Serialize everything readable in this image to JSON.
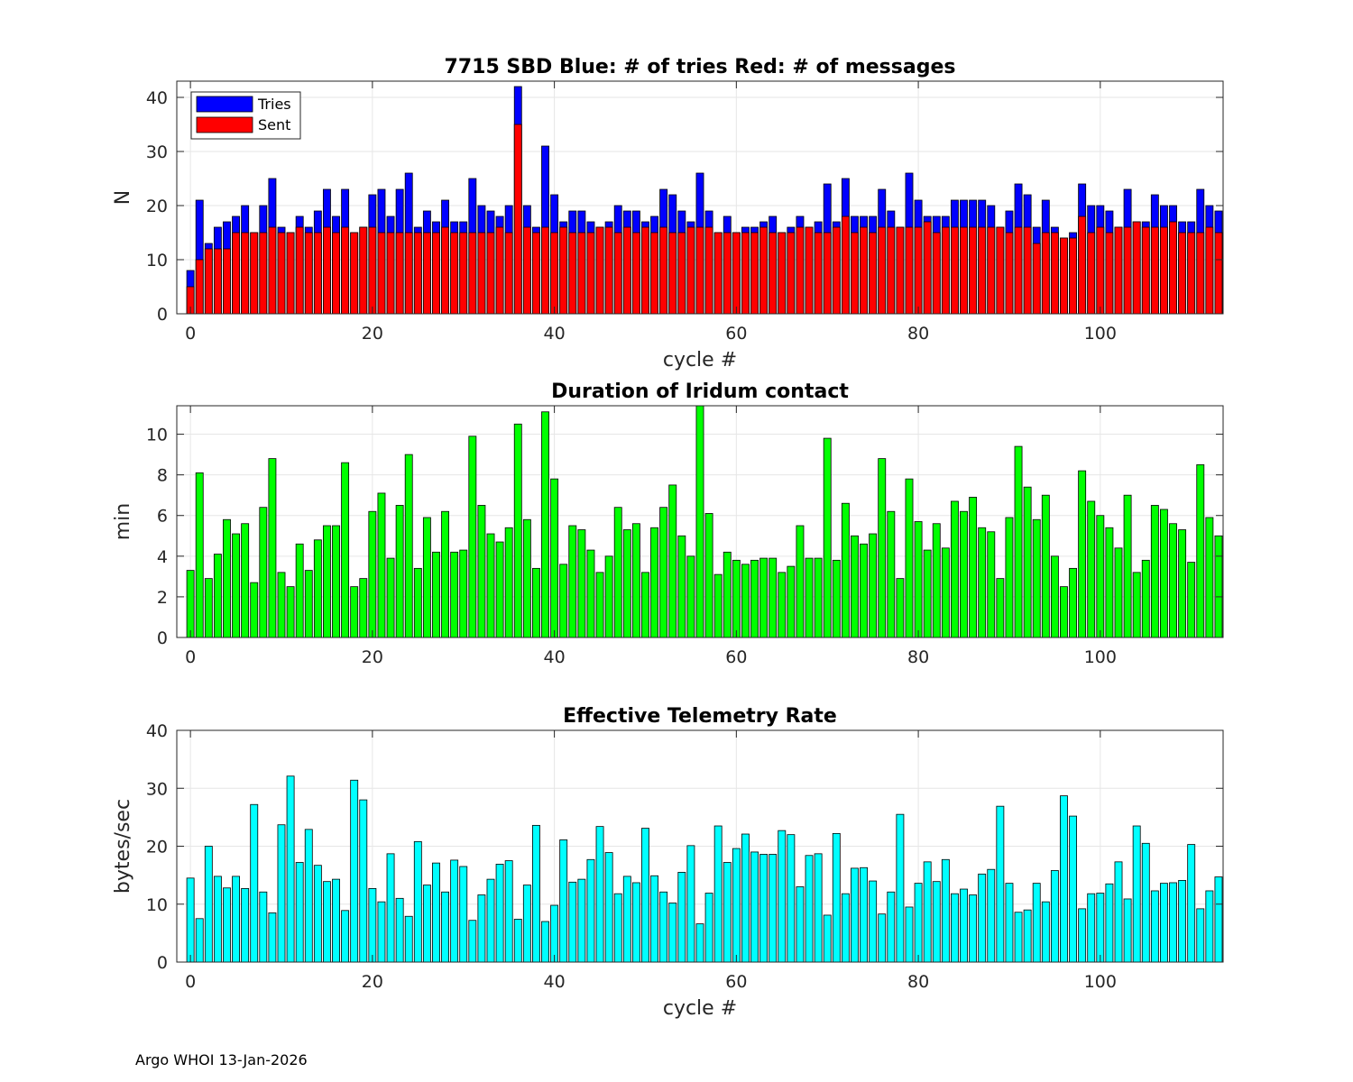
{
  "footer": "Argo WHOI 13-Jan-2026",
  "chart_data": [
    {
      "type": "bar",
      "title": "7715 SBD  Blue: # of tries   Red: # of messages",
      "xlabel": "cycle #",
      "ylabel": "N",
      "xlim": [
        -1.5,
        113.5
      ],
      "ylim": [
        0,
        43
      ],
      "xticks": [
        0,
        20,
        40,
        60,
        80,
        100
      ],
      "yticks": [
        0,
        10,
        20,
        30,
        40
      ],
      "grid": true,
      "legend": {
        "placement": "top-left",
        "entries": [
          {
            "label": "Tries",
            "color": "#0000ff"
          },
          {
            "label": "Sent",
            "color": "#ff0000"
          }
        ]
      },
      "x_start": 0,
      "series": [
        {
          "name": "Tries",
          "color": "#0000ff",
          "values": [
            8,
            21,
            13,
            16,
            17,
            18,
            20,
            15,
            20,
            25,
            16,
            15,
            18,
            16,
            19,
            23,
            18,
            23,
            15,
            16,
            22,
            23,
            18,
            23,
            26,
            16,
            19,
            17,
            21,
            17,
            17,
            25,
            20,
            19,
            18,
            20,
            42,
            20,
            16,
            31,
            22,
            17,
            19,
            19,
            17,
            16,
            17,
            20,
            19,
            19,
            17,
            18,
            23,
            22,
            19,
            17,
            26,
            19,
            15,
            18,
            15,
            16,
            16,
            17,
            18,
            15,
            16,
            18,
            16,
            17,
            24,
            17,
            25,
            18,
            18,
            18,
            23,
            19,
            16,
            26,
            21,
            18,
            18,
            18,
            21,
            21,
            21,
            21,
            20,
            16,
            19,
            24,
            22,
            16,
            21,
            16,
            14,
            15,
            24,
            20,
            20,
            19,
            16,
            23,
            17,
            17,
            22,
            20,
            20,
            17,
            17,
            23,
            20,
            19
          ]
        },
        {
          "name": "Sent",
          "color": "#ff0000",
          "values": [
            5,
            10,
            12,
            12,
            12,
            15,
            15,
            15,
            15,
            16,
            15,
            15,
            16,
            15,
            15,
            16,
            15,
            16,
            15,
            16,
            16,
            15,
            15,
            15,
            15,
            15,
            15,
            15,
            16,
            15,
            15,
            15,
            15,
            15,
            16,
            15,
            35,
            16,
            15,
            16,
            15,
            16,
            15,
            15,
            15,
            16,
            16,
            15,
            16,
            15,
            16,
            15,
            16,
            15,
            15,
            16,
            16,
            16,
            15,
            15,
            15,
            15,
            15,
            16,
            15,
            15,
            15,
            16,
            16,
            15,
            15,
            16,
            18,
            15,
            16,
            15,
            16,
            16,
            16,
            16,
            16,
            17,
            15,
            16,
            16,
            16,
            16,
            16,
            16,
            16,
            15,
            16,
            16,
            13,
            15,
            15,
            14,
            14,
            18,
            15,
            16,
            15,
            16,
            16,
            17,
            16,
            16,
            16,
            17,
            15,
            15,
            15,
            16,
            15
          ]
        }
      ]
    },
    {
      "type": "bar",
      "title": "Duration of Iridum contact",
      "xlabel": "",
      "ylabel": "min",
      "xlim": [
        -1.5,
        113.5
      ],
      "ylim": [
        0,
        11.4
      ],
      "xticks": [
        0,
        20,
        40,
        60,
        80,
        100
      ],
      "yticks": [
        0,
        2,
        4,
        6,
        8,
        10
      ],
      "grid": true,
      "x_start": 0,
      "series": [
        {
          "name": "Duration",
          "color": "#00ff00",
          "values": [
            3.3,
            8.1,
            2.9,
            4.1,
            5.8,
            5.1,
            5.6,
            2.7,
            6.4,
            8.8,
            3.2,
            2.5,
            4.6,
            3.3,
            4.8,
            5.5,
            5.5,
            8.6,
            2.5,
            2.9,
            6.2,
            7.1,
            3.9,
            6.5,
            9.0,
            3.4,
            5.9,
            4.2,
            6.2,
            4.2,
            4.3,
            9.9,
            6.5,
            5.1,
            4.7,
            5.4,
            10.5,
            5.8,
            3.4,
            11.1,
            7.8,
            3.6,
            5.5,
            5.3,
            4.3,
            3.2,
            4.0,
            6.4,
            5.3,
            5.6,
            3.2,
            5.4,
            6.4,
            7.5,
            5.0,
            4.0,
            11.4,
            6.1,
            3.1,
            4.2,
            3.8,
            3.6,
            3.8,
            3.9,
            3.9,
            3.2,
            3.5,
            5.5,
            3.9,
            3.9,
            9.8,
            3.8,
            6.6,
            5.0,
            4.6,
            5.1,
            8.8,
            6.2,
            2.9,
            7.8,
            5.7,
            4.3,
            5.6,
            4.4,
            6.7,
            6.2,
            6.9,
            5.4,
            5.2,
            2.9,
            5.9,
            9.4,
            7.4,
            5.8,
            7.0,
            4.0,
            2.5,
            3.4,
            8.2,
            6.7,
            6.0,
            5.4,
            4.4,
            7.0,
            3.2,
            3.8,
            6.5,
            6.3,
            5.6,
            5.3,
            3.7,
            8.5,
            5.9,
            5.0
          ]
        }
      ]
    },
    {
      "type": "bar",
      "title": "Effective Telemetry Rate",
      "xlabel": "cycle #",
      "ylabel": "bytes/sec",
      "xlim": [
        -1.5,
        113.5
      ],
      "ylim": [
        0,
        40
      ],
      "xticks": [
        0,
        20,
        40,
        60,
        80,
        100
      ],
      "yticks": [
        0,
        10,
        20,
        30,
        40
      ],
      "grid": true,
      "x_start": 0,
      "series": [
        {
          "name": "Rate",
          "color": "#00ffff",
          "values": [
            14.5,
            7.5,
            20.0,
            14.8,
            12.8,
            14.8,
            12.7,
            27.2,
            12.1,
            8.5,
            23.7,
            32.1,
            17.2,
            22.9,
            16.7,
            13.9,
            14.3,
            8.9,
            31.4,
            28.0,
            12.7,
            10.4,
            18.7,
            11.0,
            7.9,
            20.8,
            13.3,
            17.1,
            12.1,
            17.6,
            16.5,
            7.2,
            11.6,
            14.3,
            16.9,
            17.5,
            7.4,
            13.3,
            23.6,
            7.0,
            9.8,
            21.1,
            13.8,
            14.3,
            17.7,
            23.4,
            18.9,
            11.8,
            14.8,
            13.7,
            23.1,
            14.9,
            12.1,
            10.2,
            15.5,
            20.1,
            6.6,
            11.9,
            23.5,
            17.2,
            19.6,
            22.1,
            19.0,
            18.6,
            18.6,
            22.7,
            22.0,
            13.0,
            18.4,
            18.7,
            8.1,
            22.2,
            11.8,
            16.2,
            16.3,
            14.0,
            8.3,
            12.1,
            25.5,
            9.5,
            13.6,
            17.3,
            13.9,
            17.7,
            11.8,
            12.6,
            11.6,
            15.2,
            16.0,
            26.9,
            13.6,
            8.6,
            9.0,
            13.6,
            10.4,
            15.8,
            28.7,
            25.2,
            9.2,
            11.8,
            11.9,
            13.5,
            17.3,
            10.9,
            23.5,
            20.5,
            12.3,
            13.6,
            13.7,
            14.1,
            20.3,
            9.2,
            12.3,
            14.7
          ]
        }
      ]
    }
  ]
}
